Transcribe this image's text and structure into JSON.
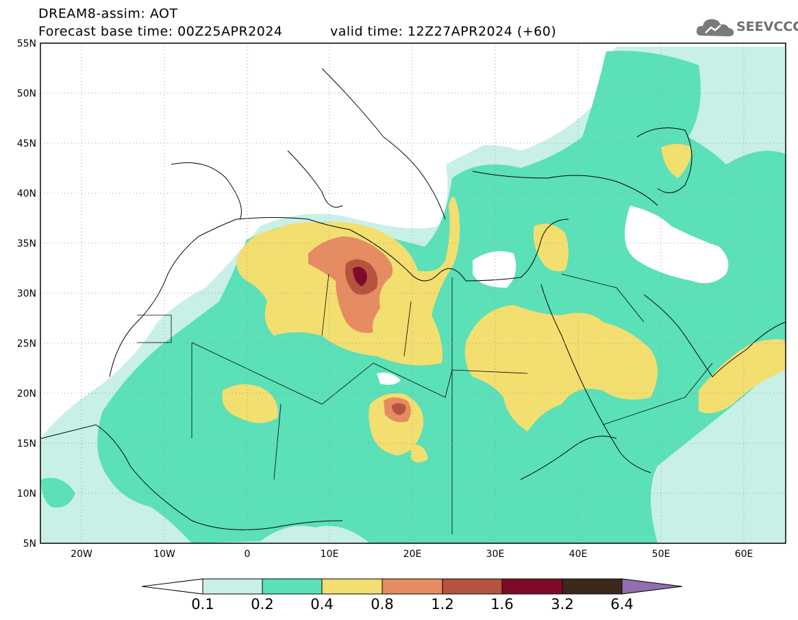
{
  "header": {
    "product": "DREAM8-assim: AOT",
    "base_time": "Forecast base time: 00Z25APR2024",
    "valid_time": "valid time: 12Z27APR2024 (+60)"
  },
  "logo": {
    "text": "SEEVCCC",
    "icon": "cloud-icon"
  },
  "map": {
    "lon_range": [
      -25,
      65
    ],
    "lat_range": [
      5,
      55
    ],
    "lon_ticks": [
      "20W",
      "10W",
      "0",
      "10E",
      "20E",
      "30E",
      "40E",
      "50E",
      "60E"
    ],
    "lat_ticks": [
      "55N",
      "50N",
      "45N",
      "40N",
      "35N",
      "30N",
      "25N",
      "20N",
      "15N",
      "10N",
      "5N"
    ]
  },
  "colorbar": {
    "labels": [
      "0.1",
      "0.2",
      "0.4",
      "0.8",
      "1.2",
      "1.6",
      "3.2",
      "6.4"
    ],
    "colors": [
      "#c8f0e6",
      "#5be0b8",
      "#f3de70",
      "#e58c62",
      "#b5533f",
      "#7f0a2a",
      "#3b2a1c",
      "#8f6fb0"
    ]
  }
}
